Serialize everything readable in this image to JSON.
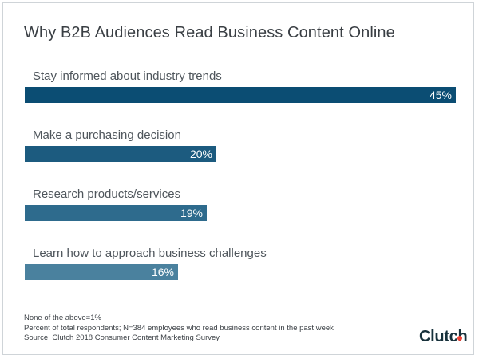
{
  "title": "Why B2B Audiences Read Business Content Online",
  "chart_data": {
    "type": "bar",
    "orientation": "horizontal",
    "title": "Why B2B Audiences Read Business Content Online",
    "categories": [
      "Stay informed about industry trends",
      "Make a purchasing decision",
      "Research products/services",
      "Learn how to approach business challenges"
    ],
    "values": [
      45,
      20,
      19,
      16
    ],
    "value_labels": [
      "45%",
      "20%",
      "19%",
      "16%"
    ],
    "unit": "%",
    "xlim": [
      0,
      45
    ],
    "bar_colors": [
      "#0b4d73",
      "#1c5b7f",
      "#2e6b8d",
      "#4a819e"
    ],
    "grid": false,
    "legend": "none"
  },
  "footnotes": {
    "line1": "None of the above=1%",
    "line2": "Percent of total respondents; N=384 employees who read business content in the past week",
    "line3": "Source: Clutch 2018 Consumer Content Marketing Survey"
  },
  "logo": {
    "text": "Clutch",
    "accent_color": "#ef4335"
  }
}
